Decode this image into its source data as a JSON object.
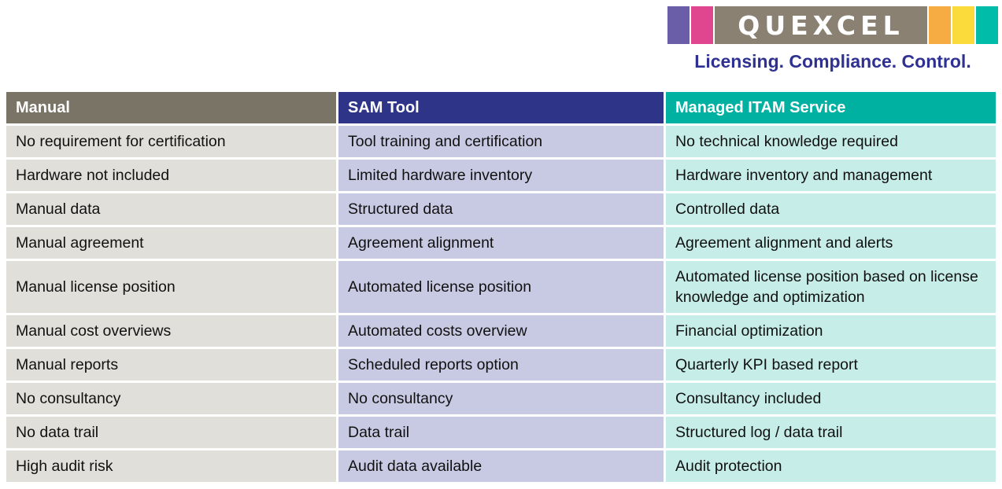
{
  "logo": {
    "brand": "QUEXCEL",
    "tagline": "Licensing. Compliance. Control."
  },
  "colors": {
    "logo-purple": "#6A5EA8",
    "logo-pink": "#E0468F",
    "logo-bar": "#8A8173",
    "logo-orange": "#F6AC43",
    "logo-yellow": "#FADB3B",
    "logo-teal": "#00BCA8",
    "tagline-navy": "#2E3192",
    "hdr-manual": "#7A7466",
    "hdr-sam": "#2E3589",
    "hdr-itam": "#00B1A1",
    "cell-manual": "#E0DFD9",
    "cell-sam": "#C8CAE3",
    "cell-itam": "#C6EDE8"
  },
  "table": {
    "columns": [
      {
        "label": "Manual"
      },
      {
        "label": "SAM Tool"
      },
      {
        "label": "Managed ITAM Service"
      }
    ],
    "rows": [
      [
        "No requirement for certification",
        "Tool training and certification",
        "No technical knowledge required"
      ],
      [
        "Hardware not included",
        "Limited hardware inventory",
        "Hardware inventory and management"
      ],
      [
        "Manual data",
        "Structured data",
        "Controlled data"
      ],
      [
        "Manual agreement",
        "Agreement alignment",
        "Agreement alignment and alerts"
      ],
      [
        "Manual license position",
        "Automated license position",
        "Automated license position based on license knowledge and optimization"
      ],
      [
        "Manual cost overviews",
        "Automated costs overview",
        "Financial optimization"
      ],
      [
        "Manual reports",
        "Scheduled reports option",
        "Quarterly KPI based report"
      ],
      [
        "No consultancy",
        "No consultancy",
        "Consultancy included"
      ],
      [
        "No data trail",
        "Data trail",
        "Structured log / data trail"
      ],
      [
        "High audit risk",
        "Audit data available",
        "Audit protection"
      ]
    ]
  }
}
